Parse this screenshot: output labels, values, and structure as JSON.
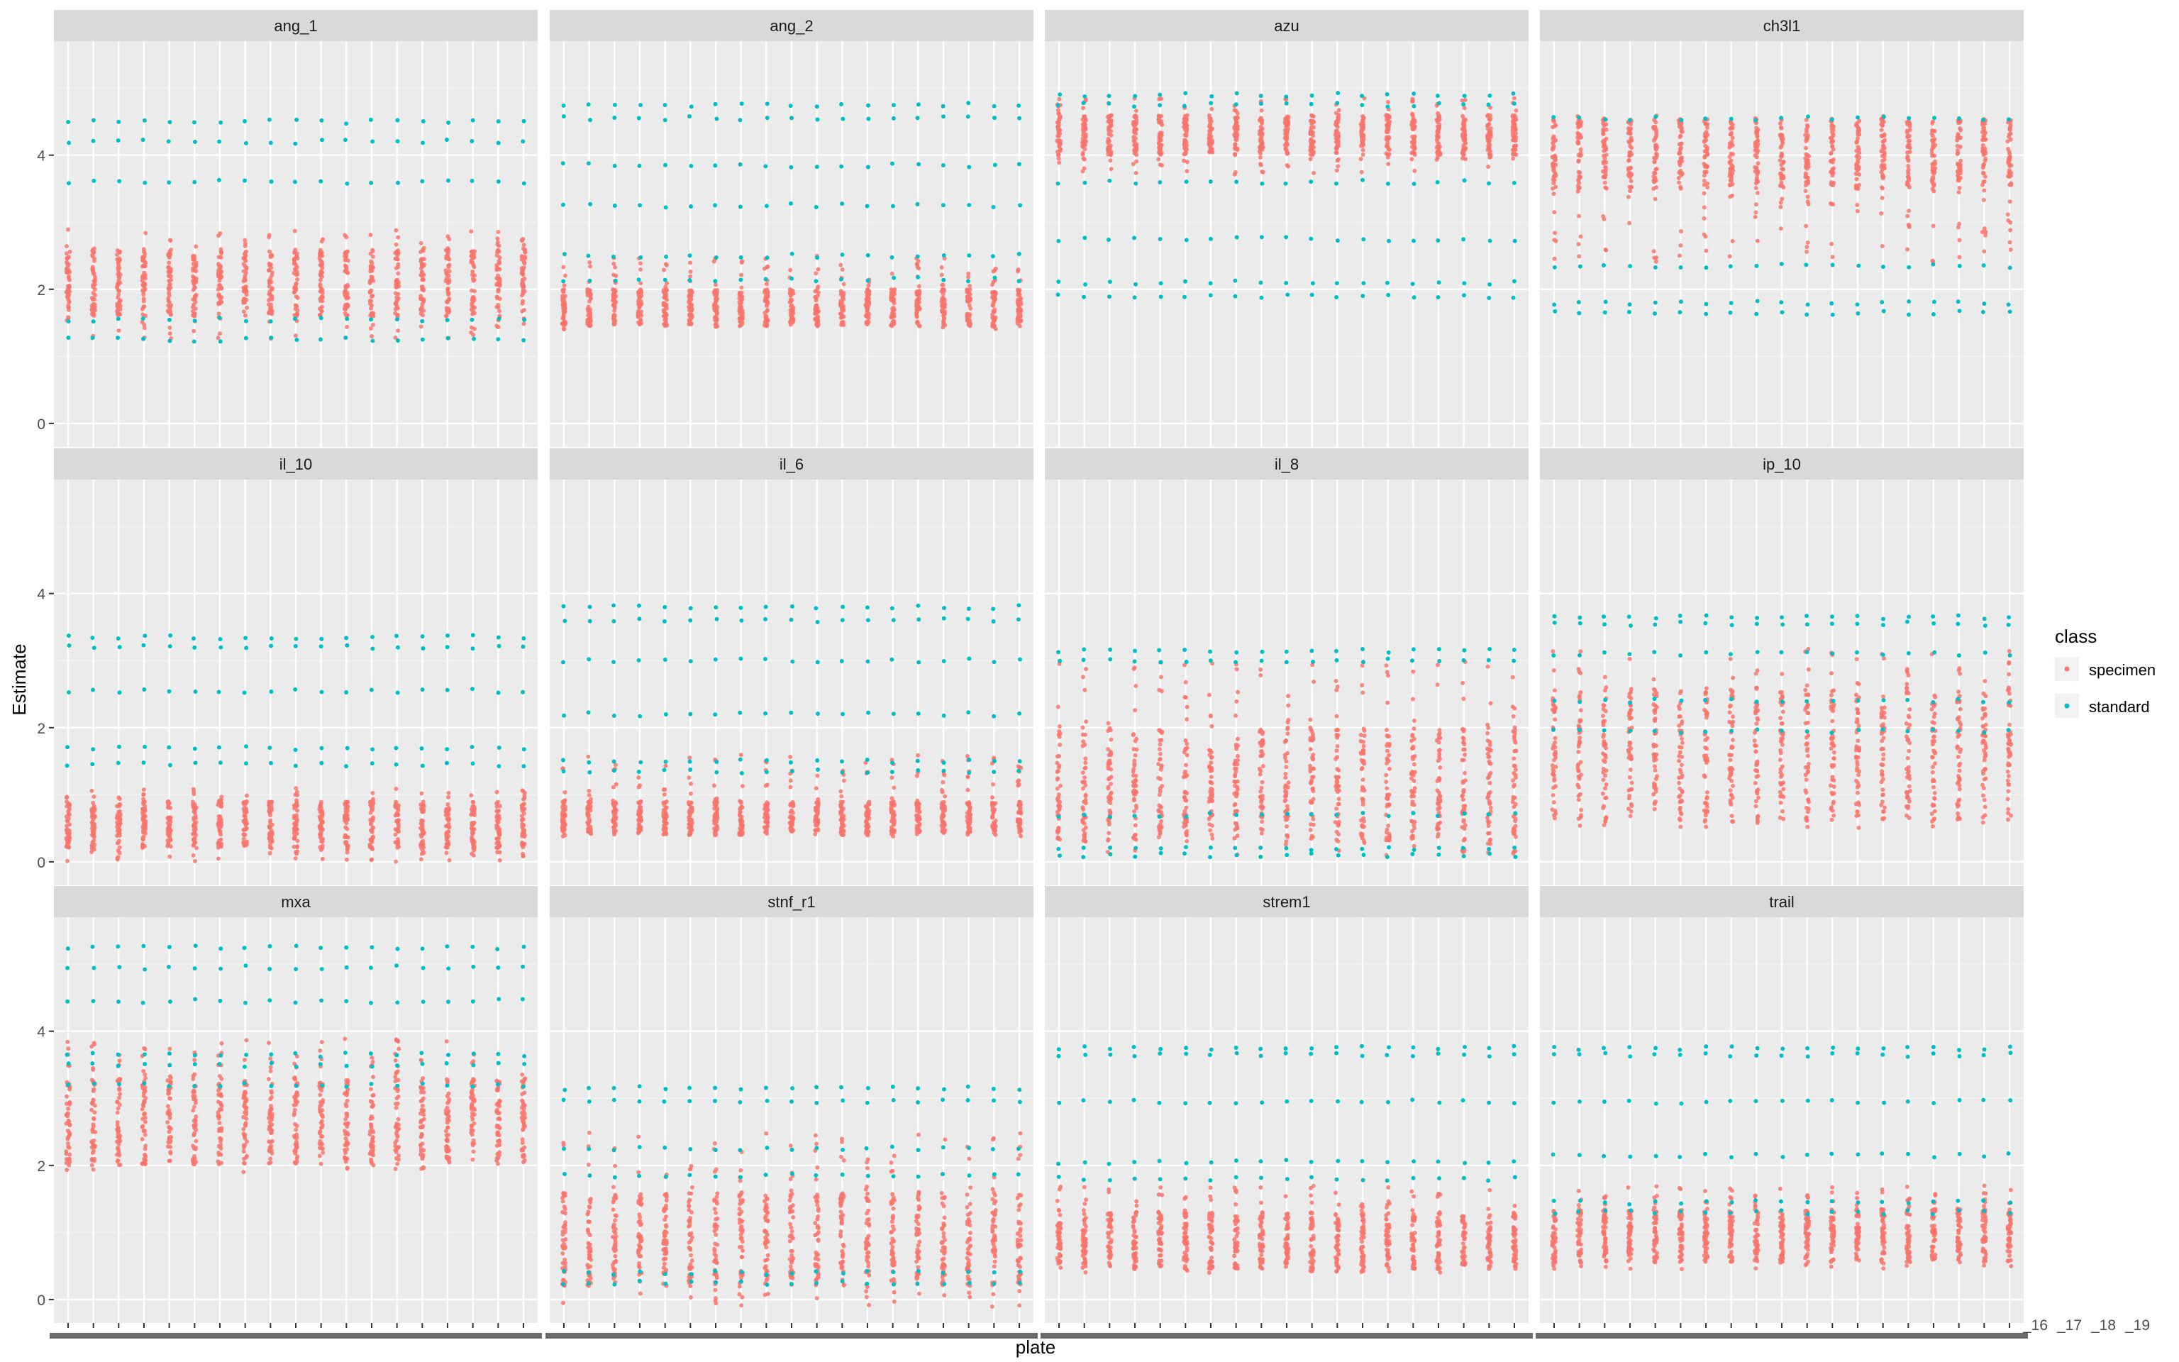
{
  "colors": {
    "panel_bg": "#ebebeb",
    "strip_bg": "#d9d9d9",
    "grid_major": "#ffffff",
    "axis_text": "#4d4d4d",
    "specimen": "#f8766d",
    "standard": "#00bfc4"
  },
  "chart_data": {
    "type": "scatter",
    "facet_layout": {
      "rows": 3,
      "cols": 4
    },
    "xlabel": "plate",
    "ylabel": "Estimate",
    "ylim": [
      -0.35,
      5.7
    ],
    "y_ticks": [
      0,
      2,
      4
    ],
    "x_tick_labels_visible": [
      "_16",
      "_17",
      "_18",
      "_19"
    ],
    "grid": true,
    "legend": {
      "title": "class",
      "position": "right",
      "entries": [
        {
          "name": "specimen",
          "color": "#f8766d"
        },
        {
          "name": "standard",
          "color": "#00bfc4"
        }
      ]
    },
    "series_names": [
      "specimen",
      "standard"
    ],
    "plates_per_panel": 19,
    "panels": [
      {
        "title": "ang_1",
        "specimen": {
          "lo": 1.25,
          "hi": 2.9,
          "dense_lo": 1.6,
          "dense_hi": 2.6
        },
        "standard_levels": [
          4.5,
          4.2,
          3.6,
          1.55,
          1.25
        ]
      },
      {
        "title": "ang_2",
        "specimen": {
          "lo": 1.4,
          "hi": 2.5,
          "dense_lo": 1.45,
          "dense_hi": 2.0
        },
        "standard_levels": [
          4.75,
          4.55,
          3.85,
          3.25,
          2.5,
          2.15
        ]
      },
      {
        "title": "azu",
        "specimen": {
          "lo": 3.7,
          "hi": 4.85,
          "dense_lo": 4.0,
          "dense_hi": 4.6
        },
        "standard_levels": [
          4.9,
          4.75,
          3.6,
          2.75,
          2.1,
          1.9
        ]
      },
      {
        "title": "ch3l1",
        "specimen": {
          "lo": 2.4,
          "hi": 4.6,
          "dense_lo": 3.5,
          "dense_hi": 4.55
        },
        "standard_levels": [
          4.55,
          2.35,
          1.8,
          1.65
        ]
      },
      {
        "title": "il_10",
        "specimen": {
          "lo": 0.0,
          "hi": 1.1,
          "dense_lo": 0.2,
          "dense_hi": 0.9
        },
        "standard_levels": [
          3.35,
          3.2,
          2.55,
          1.7,
          1.45
        ]
      },
      {
        "title": "il_6",
        "specimen": {
          "lo": 0.35,
          "hi": 1.6,
          "dense_lo": 0.4,
          "dense_hi": 0.9
        },
        "standard_levels": [
          3.8,
          3.6,
          3.0,
          2.2,
          1.5,
          1.35
        ]
      },
      {
        "title": "il_8",
        "specimen": {
          "lo": 0.1,
          "hi": 3.0,
          "dense_lo": 0.3,
          "dense_hi": 2.0
        },
        "standard_levels": [
          3.15,
          3.0,
          0.7,
          0.2,
          0.1
        ]
      },
      {
        "title": "ip_10",
        "specimen": {
          "lo": 0.5,
          "hi": 3.2,
          "dense_lo": 0.6,
          "dense_hi": 2.6
        },
        "standard_levels": [
          3.65,
          3.55,
          3.1,
          2.4,
          1.95
        ]
      },
      {
        "title": "mxa",
        "specimen": {
          "lo": 1.9,
          "hi": 3.9,
          "dense_lo": 2.0,
          "dense_hi": 3.3
        },
        "standard_levels": [
          5.25,
          4.95,
          4.45,
          3.65,
          3.5,
          3.2
        ]
      },
      {
        "title": "stnf_r1",
        "specimen": {
          "lo": -0.15,
          "hi": 2.5,
          "dense_lo": 0.2,
          "dense_hi": 1.6
        },
        "standard_levels": [
          3.15,
          2.95,
          2.25,
          1.85,
          0.4,
          0.25
        ]
      },
      {
        "title": "strem1",
        "specimen": {
          "lo": 0.4,
          "hi": 1.7,
          "dense_lo": 0.45,
          "dense_hi": 1.3
        },
        "standard_levels": [
          3.75,
          3.65,
          2.95,
          2.05,
          1.8
        ]
      },
      {
        "title": "trail",
        "specimen": {
          "lo": 0.45,
          "hi": 1.7,
          "dense_lo": 0.55,
          "dense_hi": 1.35
        },
        "standard_levels": [
          3.75,
          3.65,
          2.95,
          2.15,
          1.45,
          1.3
        ]
      }
    ]
  }
}
